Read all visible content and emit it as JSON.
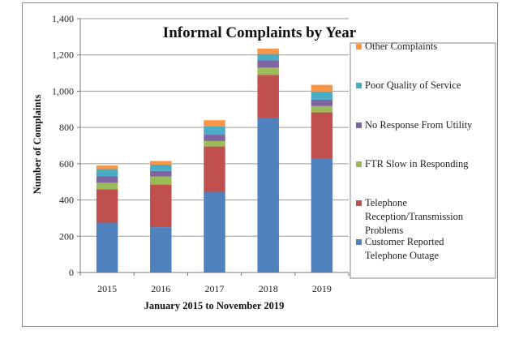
{
  "chart_data": {
    "type": "bar",
    "stacked": true,
    "title": "Informal Complaints by Year",
    "xlabel": "January 2015 to November 2019",
    "ylabel": "Number of Complaints",
    "categories": [
      "2015",
      "2016",
      "2017",
      "2018",
      "2019"
    ],
    "ylim": [
      0,
      1400
    ],
    "yticks": [
      "0",
      "200",
      "400",
      "600",
      "800",
      "1,000",
      "1,200",
      "1,400"
    ],
    "grid": true,
    "legend_position": "right",
    "series": [
      {
        "name": "Customer Reported Telephone Outage",
        "color": "#4f81bd",
        "values": [
          275,
          250,
          445,
          850,
          628
        ]
      },
      {
        "name": "Telephone Reception/Transmission Problems",
        "color": "#c0504d",
        "values": [
          185,
          235,
          250,
          240,
          255
        ]
      },
      {
        "name": "FTR Slow in Responding",
        "color": "#9bbb59",
        "values": [
          35,
          45,
          30,
          40,
          35
        ]
      },
      {
        "name": "No Response From Utility",
        "color": "#8064a2",
        "values": [
          35,
          30,
          35,
          40,
          35
        ]
      },
      {
        "name": "Poor Quality of Service",
        "color": "#4bacc6",
        "values": [
          40,
          35,
          45,
          35,
          45
        ]
      },
      {
        "name": "Other Complaints",
        "color": "#f79646",
        "values": [
          20,
          20,
          35,
          30,
          37
        ]
      }
    ]
  }
}
